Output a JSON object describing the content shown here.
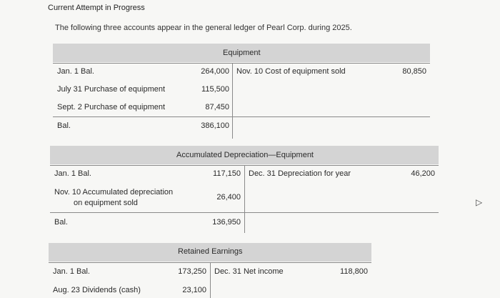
{
  "page": {
    "title": "Current Attempt in Progress",
    "intro": "The following three accounts appear in the general ledger of Pearl Corp. during 2025."
  },
  "equipment": {
    "heading": "Equipment",
    "debits": [
      {
        "label": "Jan. 1 Bal.",
        "amount": "264,000"
      },
      {
        "label": "July 31 Purchase of equipment",
        "amount": "115,500"
      },
      {
        "label": "Sept. 2 Purchase of equipment",
        "amount": "87,450"
      }
    ],
    "balance": {
      "label": "Bal.",
      "amount": "386,100"
    },
    "credits": [
      {
        "label": "Nov. 10 Cost of equipment sold",
        "amount": "80,850"
      }
    ]
  },
  "accum_dep": {
    "heading": "Accumulated Depreciation—Equipment",
    "debits": [
      {
        "label": "Jan. 1 Bal.",
        "amount": "117,150"
      },
      {
        "label_line1": "Nov. 10 Accumulated depreciation",
        "label_line2": "on equipment sold",
        "amount": "26,400"
      }
    ],
    "balance": {
      "label": "Bal.",
      "amount": "136,950"
    },
    "credits": [
      {
        "label": "Dec. 31 Depreciation for year",
        "amount": "46,200"
      }
    ]
  },
  "retained": {
    "heading": "Retained Earnings",
    "debits": [
      {
        "label": "Jan. 1 Bal.",
        "amount": "173,250"
      },
      {
        "label": "Aug. 23 Dividends (cash)",
        "amount": "23,100"
      }
    ],
    "credits": [
      {
        "label": "Dec. 31 Net income",
        "amount": "118,800"
      }
    ]
  }
}
